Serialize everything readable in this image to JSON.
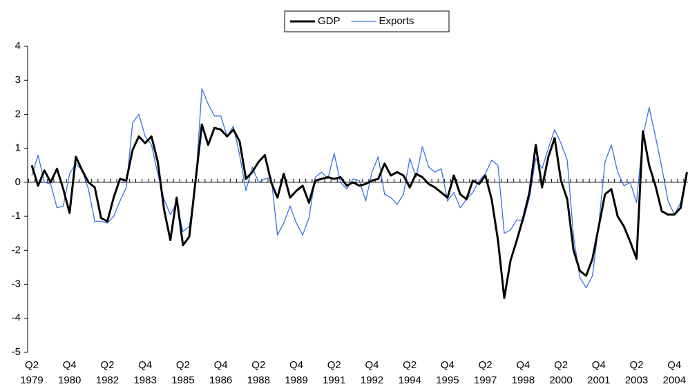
{
  "chart_data": {
    "type": "line",
    "categories": [
      "Q2 1979",
      null,
      null,
      null,
      null,
      null,
      "Q4 1980",
      null,
      null,
      null,
      null,
      null,
      "Q2 1982",
      null,
      null,
      null,
      null,
      null,
      "Q4 1983",
      null,
      null,
      null,
      null,
      null,
      "Q2 1985",
      null,
      null,
      null,
      null,
      null,
      "Q4 1986",
      null,
      null,
      null,
      null,
      null,
      "Q2 1988",
      null,
      null,
      null,
      null,
      null,
      "Q4 1989",
      null,
      null,
      null,
      null,
      null,
      "Q2 1991",
      null,
      null,
      null,
      null,
      null,
      "Q4 1992",
      null,
      null,
      null,
      null,
      null,
      "Q2 1994",
      null,
      null,
      null,
      null,
      null,
      "Q4 1995",
      null,
      null,
      null,
      null,
      null,
      "Q2 1997",
      null,
      null,
      null,
      null,
      null,
      "Q4 1998",
      null,
      null,
      null,
      null,
      null,
      "Q2 2000",
      null,
      null,
      null,
      null,
      null,
      "Q4 2001",
      null,
      null,
      null,
      null,
      null,
      "Q2 2003",
      null,
      null,
      null,
      null,
      null,
      "Q4 2004",
      null,
      null
    ],
    "series": [
      {
        "name": "GDP",
        "color": "#000000",
        "width": 3,
        "values": [
          0.5,
          -0.1,
          0.35,
          0.0,
          0.4,
          -0.2,
          -0.9,
          0.75,
          0.35,
          0.0,
          -0.15,
          -1.05,
          -1.15,
          -0.45,
          0.1,
          0.05,
          0.95,
          1.35,
          1.15,
          1.35,
          0.6,
          -0.8,
          -1.7,
          -0.45,
          -1.85,
          -1.6,
          0.05,
          1.7,
          1.1,
          1.6,
          1.55,
          1.35,
          1.55,
          1.2,
          0.1,
          0.3,
          0.6,
          0.8,
          0.0,
          -0.45,
          0.25,
          -0.45,
          -0.25,
          -0.1,
          -0.6,
          0.05,
          0.1,
          0.15,
          0.1,
          0.15,
          -0.1,
          0.0,
          -0.1,
          -0.05,
          0.05,
          0.1,
          0.55,
          0.2,
          0.3,
          0.2,
          -0.15,
          0.25,
          0.15,
          -0.05,
          -0.15,
          -0.3,
          -0.45,
          0.2,
          -0.35,
          -0.5,
          0.05,
          -0.05,
          0.2,
          -0.5,
          -1.7,
          -3.4,
          -2.3,
          -1.7,
          -1.05,
          -0.3,
          1.1,
          -0.15,
          0.75,
          1.3,
          0.05,
          -0.5,
          -2.0,
          -2.6,
          -2.75,
          -2.25,
          -1.3,
          -0.35,
          -0.2,
          -1.0,
          -1.3,
          -1.75,
          -2.25,
          1.5,
          0.5,
          -0.1,
          -0.85,
          -0.95,
          -0.95,
          -0.75,
          0.3
        ]
      },
      {
        "name": "Exports",
        "color": "#3a6fe0",
        "width": 1.3,
        "values": [
          0.2,
          0.8,
          0.0,
          -0.05,
          -0.75,
          -0.7,
          0.25,
          0.55,
          0.35,
          -0.2,
          -1.15,
          -1.15,
          -1.2,
          -1.0,
          -0.55,
          -0.15,
          1.75,
          2.0,
          1.35,
          1.1,
          0.25,
          -0.5,
          -0.95,
          -0.6,
          -1.45,
          -1.3,
          -0.05,
          2.75,
          2.3,
          1.95,
          1.95,
          1.35,
          1.65,
          0.8,
          -0.25,
          0.45,
          0.0,
          0.1,
          0.15,
          -1.55,
          -1.2,
          -0.7,
          -1.2,
          -1.55,
          -1.05,
          0.15,
          0.3,
          0.1,
          0.85,
          0.0,
          -0.2,
          0.1,
          0.05,
          -0.55,
          0.3,
          0.75,
          -0.35,
          -0.45,
          -0.65,
          -0.35,
          0.7,
          0.15,
          1.05,
          0.45,
          0.3,
          0.4,
          -0.55,
          -0.3,
          -0.75,
          -0.5,
          -0.3,
          0.05,
          0.25,
          0.65,
          0.5,
          -1.5,
          -1.4,
          -1.1,
          -1.15,
          -0.45,
          0.7,
          0.4,
          1.0,
          1.55,
          1.15,
          0.65,
          -1.6,
          -2.8,
          -3.1,
          -2.75,
          -1.25,
          0.6,
          1.1,
          0.3,
          -0.1,
          0.0,
          -0.6,
          1.35,
          2.2,
          1.35,
          0.45,
          -0.55,
          -0.95,
          -0.6,
          0.3
        ]
      }
    ],
    "ylim": [
      -5,
      4
    ],
    "yticks": [
      -5,
      -4,
      -3,
      -2,
      -1,
      0,
      1,
      2,
      3,
      4
    ],
    "legend": "top"
  }
}
